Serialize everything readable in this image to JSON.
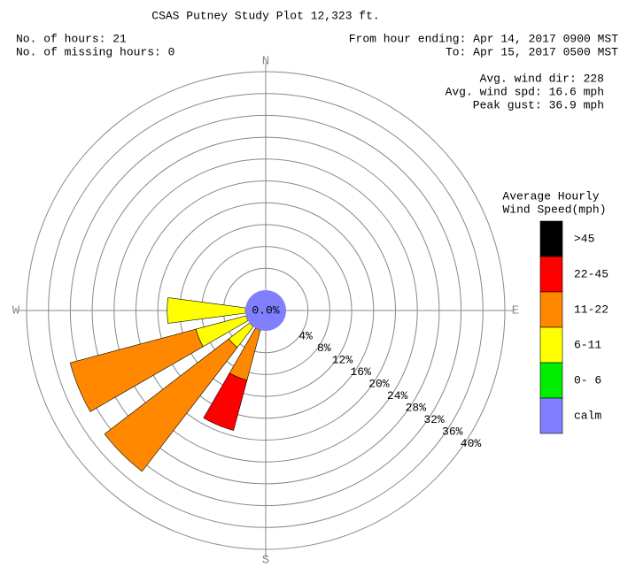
{
  "chart_data": {
    "type": "windrose",
    "title": "CSAS Putney Study Plot 12,323 ft.",
    "info_left": [
      "No. of hours: 21",
      "No. of missing hours: 0"
    ],
    "info_right": [
      "From hour ending: Apr 14, 2017 0900 MST",
      "To: Apr 15, 2017 0500 MST"
    ],
    "stats": [
      "Avg. wind dir: 228",
      "Avg. wind spd: 16.6 mph",
      "Peak gust: 36.9 mph"
    ],
    "legend_title": [
      "Average Hourly",
      "Wind Speed(mph)"
    ],
    "categories": [
      "N",
      null,
      null,
      null,
      "E",
      null,
      null,
      null,
      "S",
      null,
      null,
      null,
      "W",
      null,
      null,
      null
    ],
    "rlim": [
      0,
      40
    ],
    "rticks": [
      {
        "value": 4,
        "label": "4%"
      },
      {
        "value": 8,
        "label": "8%"
      },
      {
        "value": 12,
        "label": "12%"
      },
      {
        "value": 16,
        "label": "16%"
      },
      {
        "value": 20,
        "label": "20%"
      },
      {
        "value": 24,
        "label": "24%"
      },
      {
        "value": 28,
        "label": "28%"
      },
      {
        "value": 32,
        "label": "32%"
      },
      {
        "value": 36,
        "label": "36%"
      },
      {
        "value": 40,
        "label": "40%"
      }
    ],
    "series": [
      {
        "name": ">45",
        "color": "#000000",
        "values": [
          0,
          0,
          0,
          0,
          0,
          0,
          0,
          0,
          0,
          0,
          0,
          0,
          0,
          0,
          0,
          0
        ]
      },
      {
        "name": "22-45",
        "color": "#ff0000",
        "values": [
          0,
          0,
          0,
          0,
          0,
          0,
          0,
          0,
          0,
          9.5,
          0,
          0,
          0,
          0,
          0,
          0
        ]
      },
      {
        "name": "11-22",
        "color": "#ff8800",
        "values": [
          0,
          0,
          0,
          0,
          0,
          0,
          0,
          0,
          0,
          9.5,
          28.6,
          23.8,
          0,
          0,
          0,
          0
        ]
      },
      {
        "name": "6-11",
        "color": "#ffff00",
        "values": [
          0,
          0,
          0,
          0,
          0,
          0,
          0,
          0,
          0,
          0,
          4.8,
          9.5,
          14.3,
          0,
          0,
          0
        ]
      },
      {
        "name": "0- 6",
        "color": "#00ee00",
        "values": [
          0,
          0,
          0,
          0,
          0,
          0,
          0,
          0,
          0,
          0,
          0,
          0,
          0,
          0,
          0,
          0
        ]
      }
    ],
    "calm": {
      "name": "calm",
      "color": "#8080ff",
      "value": 0,
      "label": "0.0%"
    }
  }
}
